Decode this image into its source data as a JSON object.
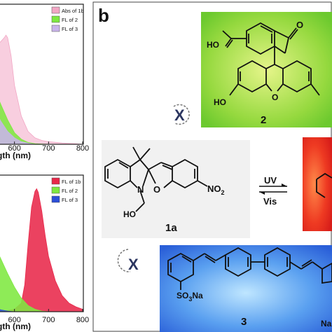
{
  "panel_b": {
    "label": "b"
  },
  "chart_data": [
    {
      "type": "area",
      "xlabel": "gth (nm)",
      "xlim": [
        500,
        800
      ],
      "ylim": [
        0,
        1.08
      ],
      "xticks": [
        "600",
        "700",
        "800"
      ],
      "legend_position": "top-right",
      "series": [
        {
          "name": "Abs of 1b",
          "color": "#f2a6c4",
          "x": [
            500,
            520,
            540,
            560,
            570,
            575,
            580,
            590,
            600,
            620,
            640,
            660,
            680,
            700,
            740,
            780,
            800
          ],
          "y": [
            0.67,
            0.71,
            0.75,
            0.8,
            0.83,
            0.85,
            0.83,
            0.69,
            0.46,
            0.22,
            0.1,
            0.05,
            0.03,
            0.02,
            0.01,
            0.005,
            0.0
          ]
        },
        {
          "name": "FL of 2",
          "color": "#7ee840",
          "x": [
            500,
            520,
            540,
            560,
            580,
            600,
            620,
            640,
            660,
            700
          ],
          "y": [
            0.63,
            0.55,
            0.44,
            0.31,
            0.19,
            0.09,
            0.04,
            0.015,
            0.005,
            0.0
          ]
        },
        {
          "name": "FL of 3",
          "color": "#c9b4ea",
          "x": [
            500,
            520,
            540,
            560,
            580,
            600,
            620,
            640,
            660,
            700
          ],
          "y": [
            0.56,
            0.43,
            0.29,
            0.18,
            0.1,
            0.05,
            0.02,
            0.008,
            0.0,
            0.0
          ]
        }
      ]
    },
    {
      "type": "area",
      "xlabel": "gth (nm)",
      "xlim": [
        500,
        800
      ],
      "ylim": [
        0,
        1.1
      ],
      "xticks": [
        "600",
        "700",
        "800"
      ],
      "legend_position": "top-right",
      "series": [
        {
          "name": "FL of 1b",
          "color": "#e8284a",
          "x": [
            500,
            560,
            600,
            620,
            630,
            640,
            650,
            660,
            665,
            670,
            680,
            690,
            700,
            720,
            740,
            760,
            780,
            800
          ],
          "y": [
            0.0,
            0.0,
            0.02,
            0.07,
            0.22,
            0.55,
            0.85,
            0.98,
            1.0,
            0.97,
            0.82,
            0.62,
            0.45,
            0.25,
            0.13,
            0.07,
            0.04,
            0.02
          ]
        },
        {
          "name": "FL of 2",
          "color": "#7ee840",
          "x": [
            500,
            520,
            540,
            560,
            580,
            600,
            620,
            640,
            660,
            680,
            700
          ],
          "y": [
            0.75,
            0.66,
            0.55,
            0.43,
            0.31,
            0.2,
            0.11,
            0.05,
            0.02,
            0.005,
            0.0
          ]
        },
        {
          "name": "FL of 3",
          "color": "#2c4fd8",
          "x": [
            500,
            520,
            540,
            560,
            580,
            600,
            620
          ],
          "y": [
            0.12,
            0.07,
            0.035,
            0.015,
            0.005,
            0.0,
            0.0
          ]
        }
      ]
    }
  ],
  "scheme": {
    "compound_2": {
      "label": "2",
      "atom_O_carbonyl": "O",
      "atom_OH_acid": "HO",
      "atom_O_bridge": "O",
      "atom_HO_phenol": "HO",
      "x_mark": "X"
    },
    "compound_1a": {
      "label": "1a",
      "atom_N": "N",
      "atom_O": "O",
      "group_NO2": "NO",
      "no2_sub": "2",
      "group_HO": "HO"
    },
    "compound_3": {
      "label": "3",
      "group_SO3Na_1": "SO",
      "so3_sub": "3",
      "group_SO3Na_2": "Na",
      "right_frag": "Na",
      "x_mark": "X"
    },
    "arrows": {
      "forward": "UV",
      "backward": "Vis"
    },
    "colors": {
      "panel2_bg": "#7ad235",
      "panel3_bg": "#3a7ae8",
      "panel_red": "#e8301e"
    }
  }
}
